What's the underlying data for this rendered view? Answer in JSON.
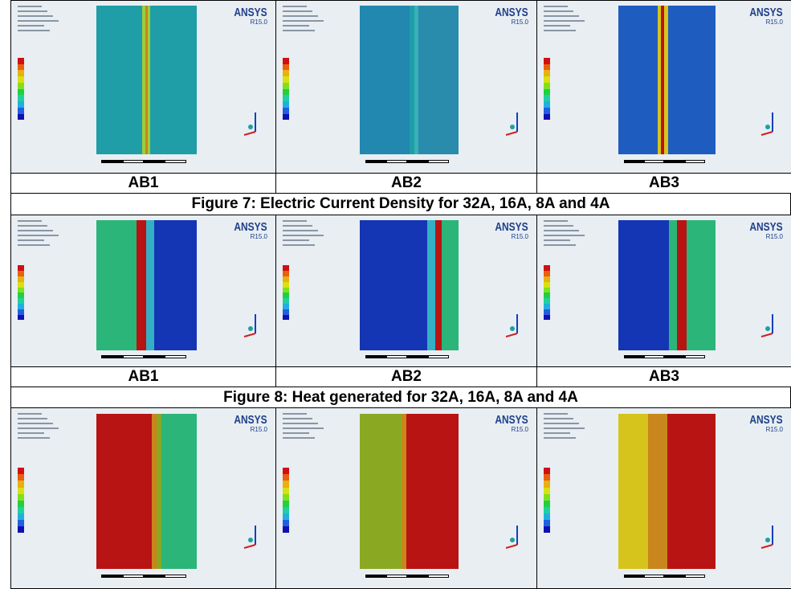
{
  "figures": [
    {
      "panels": [
        {
          "label": "AB1",
          "brand": "ANSYS",
          "version": "R15.0"
        },
        {
          "label": "AB2",
          "brand": "ANSYS",
          "version": "R15.0"
        },
        {
          "label": "AB3",
          "brand": "ANSYS",
          "version": "R15.0"
        }
      ],
      "caption": "Figure 7: Electric Current Density for 32A, 16A, 8A and 4A"
    },
    {
      "panels": [
        {
          "label": "AB1",
          "brand": "ANSYS",
          "version": "R15.0"
        },
        {
          "label": "AB2",
          "brand": "ANSYS",
          "version": "R15.0"
        },
        {
          "label": "AB3",
          "brand": "ANSYS",
          "version": "R15.0"
        }
      ],
      "caption": "Figure 8:  Heat generated for 32A, 16A, 8A and 4A"
    },
    {
      "panels": [
        {
          "brand": "ANSYS",
          "version": "R15.0"
        },
        {
          "brand": "ANSYS",
          "version": "R15.0"
        },
        {
          "brand": "ANSYS",
          "version": "R15.0"
        }
      ]
    }
  ]
}
